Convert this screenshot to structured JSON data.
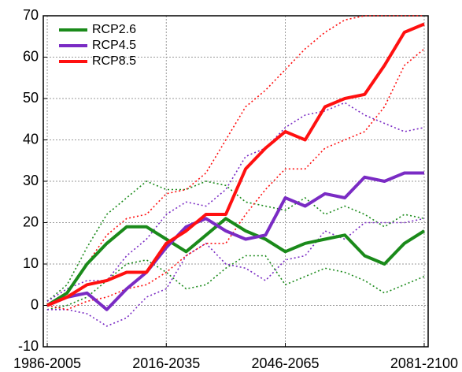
{
  "chart_data": {
    "type": "line",
    "x": [
      1986,
      1991,
      1996,
      2001,
      2006,
      2011,
      2016,
      2021,
      2026,
      2031,
      2036,
      2041,
      2046,
      2051,
      2056,
      2061,
      2066,
      2071,
      2076,
      2081
    ],
    "xlim": [
      1985,
      2082
    ],
    "xticks": [
      {
        "value": 1986,
        "label": "1986-2005"
      },
      {
        "value": 2016,
        "label": "2016-2035"
      },
      {
        "value": 2046,
        "label": "2046-2065"
      },
      {
        "value": 2081,
        "label": "2081-2100"
      }
    ],
    "ylim": [
      -10,
      70
    ],
    "yticks": [
      -10,
      0,
      10,
      20,
      30,
      40,
      50,
      60,
      70
    ],
    "grid": true,
    "legend": "upper left",
    "series": [
      {
        "name": "RCP2.6",
        "color": "#1a8a1a",
        "values": [
          0,
          3,
          10,
          15,
          19,
          19,
          16,
          13,
          17,
          21,
          18,
          16,
          13,
          15,
          16,
          17,
          12,
          10,
          15,
          18
        ],
        "upper": [
          1,
          5,
          14,
          22,
          26,
          30,
          28,
          28,
          30,
          29,
          25,
          24,
          23,
          26,
          22,
          24,
          22,
          19,
          22,
          21
        ],
        "lower": [
          -1,
          0,
          2,
          6,
          10,
          11,
          8,
          4,
          5,
          9,
          12,
          12,
          5,
          7,
          9,
          8,
          6,
          3,
          5,
          7
        ]
      },
      {
        "name": "RCP4.5",
        "color": "#7a2bc4",
        "values": [
          0,
          2,
          3,
          -1,
          4,
          8,
          14,
          19,
          21,
          18,
          16,
          17,
          26,
          24,
          27,
          26,
          31,
          30,
          32,
          32
        ],
        "upper": [
          1,
          4,
          6,
          6,
          12,
          16,
          22,
          25,
          24,
          28,
          36,
          38,
          43,
          46,
          47,
          49,
          46,
          44,
          42,
          43
        ],
        "lower": [
          -1,
          -1,
          -2,
          -5,
          -3,
          2,
          4,
          12,
          15,
          10,
          9,
          6,
          11,
          12,
          18,
          16,
          20,
          20,
          20,
          21
        ]
      },
      {
        "name": "RCP8.5",
        "color": "#ff1010",
        "values": [
          0,
          2,
          5,
          6,
          8,
          8,
          15,
          18,
          22,
          22,
          33,
          38,
          42,
          40,
          48,
          50,
          51,
          58,
          66,
          68
        ],
        "upper": [
          0,
          3,
          10,
          17,
          21,
          22,
          27,
          28,
          32,
          40,
          48,
          52,
          57,
          62,
          66,
          69,
          70,
          70,
          70,
          70
        ],
        "lower": [
          0,
          -1,
          1,
          2,
          4,
          5,
          8,
          12,
          15,
          15,
          22,
          28,
          33,
          33,
          38,
          40,
          42,
          48,
          58,
          62
        ]
      }
    ]
  }
}
